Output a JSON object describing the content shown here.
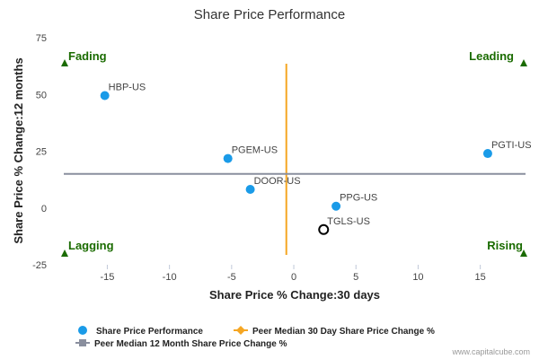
{
  "chart_data": {
    "type": "scatter",
    "title": "Share Price Performance",
    "xlabel": "Share Price % Change:30 days",
    "ylabel": "Share Price % Change:12 months",
    "xlim": [
      -18.5,
      19
    ],
    "ylim": [
      -25,
      75
    ],
    "xticks": [
      -15,
      -10,
      -5,
      0,
      5,
      10,
      15
    ],
    "yticks": [
      -25,
      0,
      25,
      50,
      75
    ],
    "grid": false,
    "legend_position": "bottom",
    "points": [
      {
        "label": "HBP-US",
        "x": -15.2,
        "y": 49.5,
        "highlight": false
      },
      {
        "label": "PGEM-US",
        "x": -5.3,
        "y": 21.8,
        "highlight": false
      },
      {
        "label": "DOOR-US",
        "x": -3.5,
        "y": 8.2,
        "highlight": false
      },
      {
        "label": "PPG-US",
        "x": 3.4,
        "y": 0.8,
        "highlight": false
      },
      {
        "label": "TGLS-US",
        "x": 2.4,
        "y": -9.5,
        "highlight": true
      },
      {
        "label": "PGTI-US",
        "x": 15.6,
        "y": 24.0,
        "highlight": false
      }
    ],
    "peer_median_30d": -0.6,
    "peer_median_12m": 15,
    "quadrants": {
      "top_left": "Fading",
      "top_right": "Leading",
      "bottom_left": "Lagging",
      "bottom_right": "Rising"
    },
    "series": [
      {
        "name": "Share Price Performance",
        "color": "#1a9be8"
      },
      {
        "name": "Peer Median 30 Day Share Price Change %",
        "color": "#f5a623"
      },
      {
        "name": "Peer Median 12 Month Share Price Change %",
        "color": "#8a8f9e"
      }
    ],
    "colors": {
      "quadrant": "#1a6b00",
      "highlight_stroke": "#000000"
    }
  },
  "credit": "www.capitalcube.com"
}
